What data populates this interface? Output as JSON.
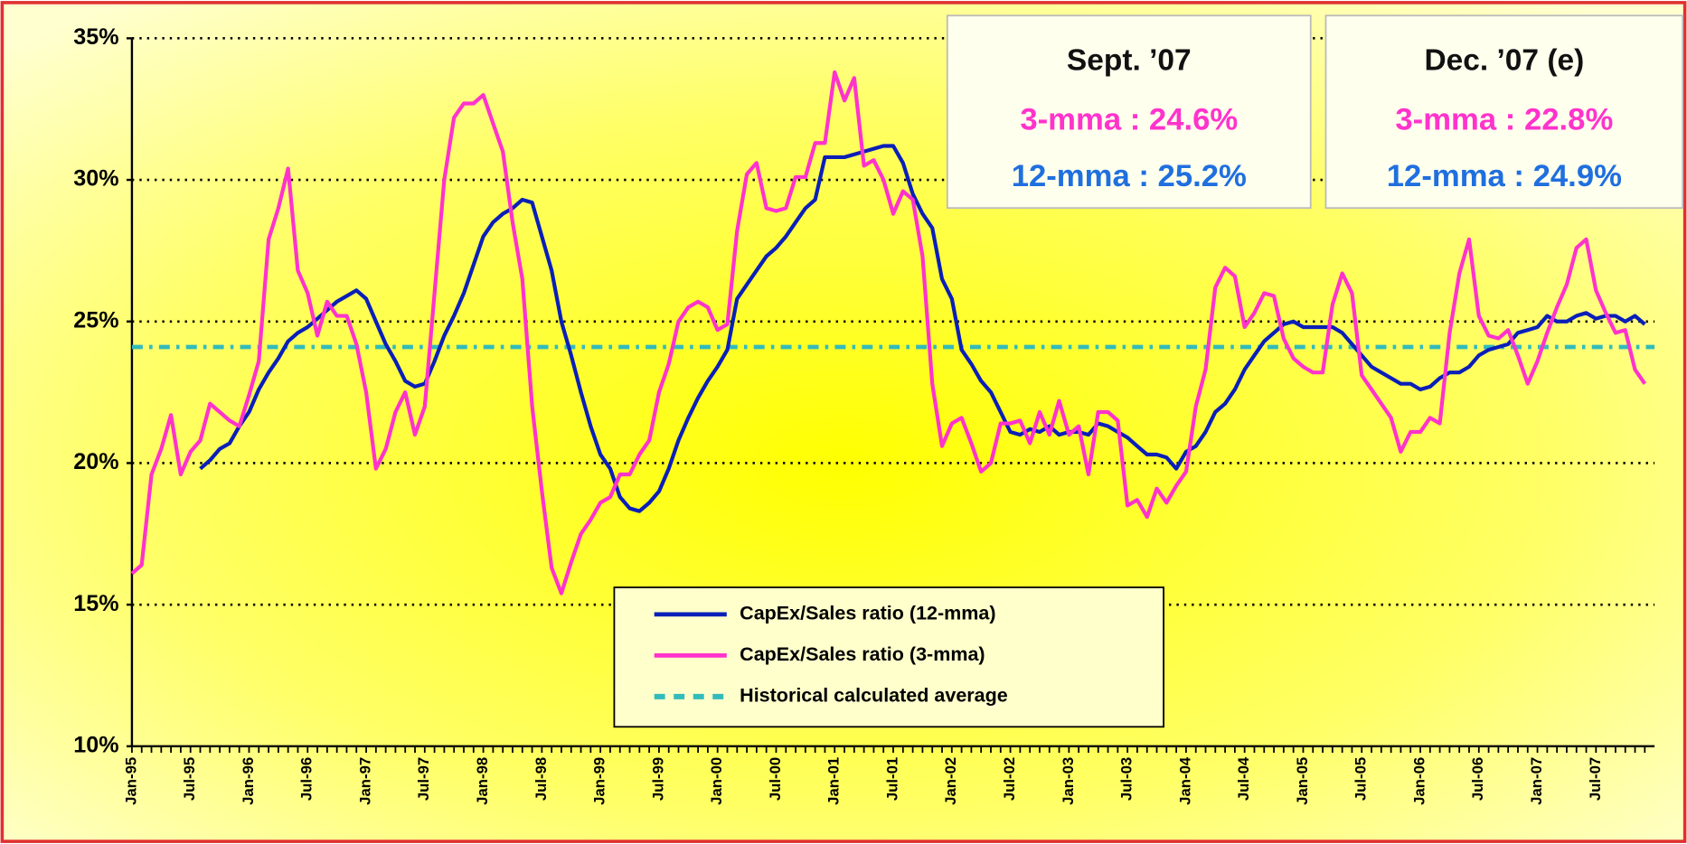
{
  "chart_data": {
    "type": "line",
    "categories": [
      "Jan-95",
      null,
      null,
      null,
      null,
      null,
      "Jul-95",
      null,
      null,
      null,
      null,
      null,
      "Jan-96",
      null,
      null,
      null,
      null,
      null,
      "Jul-96",
      null,
      null,
      null,
      null,
      null,
      "Jan-97",
      null,
      null,
      null,
      null,
      null,
      "Jul-97",
      null,
      null,
      null,
      null,
      null,
      "Jan-98",
      null,
      null,
      null,
      null,
      null,
      "Jul-98",
      null,
      null,
      null,
      null,
      null,
      "Jan-99",
      null,
      null,
      null,
      null,
      null,
      "Jul-99",
      null,
      null,
      null,
      null,
      null,
      "Jan-00",
      null,
      null,
      null,
      null,
      null,
      "Jul-00",
      null,
      null,
      null,
      null,
      null,
      "Jan-01",
      null,
      null,
      null,
      null,
      null,
      "Jul-01",
      null,
      null,
      null,
      null,
      null,
      "Jan-02",
      null,
      null,
      null,
      null,
      null,
      "Jul-02",
      null,
      null,
      null,
      null,
      null,
      "Jan-03",
      null,
      null,
      null,
      null,
      null,
      "Jul-03",
      null,
      null,
      null,
      null,
      null,
      "Jan-04",
      null,
      null,
      null,
      null,
      null,
      "Jul-04",
      null,
      null,
      null,
      null,
      null,
      "Jan-05",
      null,
      null,
      null,
      null,
      null,
      "Jul-05",
      null,
      null,
      null,
      null,
      null,
      "Jan-06",
      null,
      null,
      null,
      null,
      null,
      "Jul-06",
      null,
      null,
      null,
      null,
      null,
      "Jan-07",
      null,
      null,
      null,
      null,
      null,
      "Jul-07",
      null,
      null,
      null,
      null,
      null
    ],
    "series": [
      {
        "name": "CapEx/Sales ratio (12-mma)",
        "color": "#0a1fb8",
        "values": [
          null,
          null,
          null,
          null,
          null,
          null,
          null,
          19.8,
          20.1,
          20.5,
          20.7,
          21.3,
          21.8,
          22.6,
          23.2,
          23.7,
          24.3,
          24.6,
          24.8,
          25.1,
          25.4,
          25.7,
          25.9,
          26.1,
          25.8,
          25.0,
          24.2,
          23.6,
          22.9,
          22.7,
          22.8,
          23.6,
          24.5,
          25.2,
          26.0,
          27.0,
          28.0,
          28.5,
          28.8,
          29.0,
          29.3,
          29.2,
          28.0,
          26.8,
          25.0,
          23.8,
          22.5,
          21.3,
          20.3,
          19.8,
          18.8,
          18.4,
          18.3,
          18.6,
          19.0,
          19.8,
          20.8,
          21.6,
          22.3,
          22.9,
          23.4,
          24.0,
          25.8,
          26.3,
          26.8,
          27.3,
          27.6,
          28.0,
          28.5,
          29.0,
          29.3,
          30.8,
          30.8,
          30.8,
          30.9,
          31.0,
          31.1,
          31.2,
          31.2,
          30.6,
          29.5,
          28.8,
          28.3,
          26.5,
          25.8,
          24.0,
          23.5,
          22.9,
          22.5,
          21.8,
          21.1,
          21.0,
          21.2,
          21.1,
          21.3,
          21.0,
          21.1,
          21.1,
          21.0,
          21.4,
          21.3,
          21.1,
          20.9,
          20.6,
          20.3,
          20.3,
          20.2,
          19.8,
          20.4,
          20.6,
          21.1,
          21.8,
          22.1,
          22.6,
          23.3,
          23.8,
          24.3,
          24.6,
          24.9,
          25.0,
          24.8,
          24.8,
          24.8,
          24.8,
          24.6,
          24.2,
          23.8,
          23.4,
          23.2,
          23.0,
          22.8,
          22.8,
          22.6,
          22.7,
          23.0,
          23.2,
          23.2,
          23.4,
          23.8,
          24.0,
          24.1,
          24.2,
          24.6,
          24.7,
          24.8,
          25.2,
          25.0,
          25.0,
          25.2,
          25.3,
          25.1,
          25.2,
          25.2,
          25.0,
          25.2,
          24.9
        ]
      },
      {
        "name": "CapEx/Sales ratio (3-mma)",
        "color": "#ff33cc",
        "values": [
          16.1,
          16.4,
          19.6,
          20.5,
          21.7,
          19.6,
          20.4,
          20.8,
          22.1,
          21.8,
          21.5,
          21.3,
          22.4,
          23.6,
          27.9,
          29.0,
          30.4,
          26.8,
          26.0,
          24.5,
          25.7,
          25.2,
          25.2,
          24.2,
          22.5,
          19.8,
          20.5,
          21.8,
          22.5,
          21.0,
          22.0,
          26.0,
          30.0,
          32.2,
          32.7,
          32.7,
          33.0,
          32.0,
          31.0,
          28.5,
          26.5,
          22.0,
          19.0,
          16.3,
          15.4,
          16.5,
          17.5,
          18.0,
          18.6,
          18.8,
          19.6,
          19.6,
          20.3,
          20.8,
          22.5,
          23.5,
          25.0,
          25.5,
          25.7,
          25.5,
          24.7,
          24.9,
          28.2,
          30.2,
          30.6,
          29.0,
          28.9,
          29.0,
          30.1,
          30.1,
          31.3,
          31.3,
          33.8,
          32.8,
          33.6,
          30.5,
          30.7,
          30.0,
          28.8,
          29.6,
          29.3,
          27.3,
          22.8,
          20.6,
          21.4,
          21.6,
          20.7,
          19.7,
          20.0,
          21.4,
          21.4,
          21.5,
          20.7,
          21.8,
          21.0,
          22.2,
          21.0,
          21.3,
          19.6,
          21.8,
          21.8,
          21.5,
          18.5,
          18.7,
          18.1,
          19.1,
          18.6,
          19.2,
          19.7,
          22.0,
          23.3,
          26.2,
          26.9,
          26.6,
          24.8,
          25.3,
          26.0,
          25.9,
          24.4,
          23.7,
          23.4,
          23.2,
          23.2,
          25.6,
          26.7,
          26.0,
          23.1,
          22.6,
          22.1,
          21.6,
          20.4,
          21.1,
          21.1,
          21.6,
          21.4,
          24.6,
          26.7,
          27.9,
          25.2,
          24.5,
          24.4,
          24.7,
          23.8,
          22.8,
          23.6,
          24.6,
          25.5,
          26.3,
          27.6,
          27.9,
          26.1,
          25.3,
          24.6,
          24.7,
          23.3,
          22.8
        ]
      }
    ],
    "reference_line": {
      "name": "Historical calculated average",
      "value": 24.1,
      "color": "#33bbbb"
    },
    "ylim": [
      10,
      35
    ],
    "yticks": [
      {
        "value": 10,
        "label": "10%"
      },
      {
        "value": 15,
        "label": "15%"
      },
      {
        "value": 20,
        "label": "20%"
      },
      {
        "value": 25,
        "label": "25%"
      },
      {
        "value": 30,
        "label": "30%"
      },
      {
        "value": 35,
        "label": "35%"
      }
    ],
    "grid": true,
    "legend": "bottom-center",
    "annotations": [
      {
        "title": "Sept. ’07",
        "lines": [
          {
            "text": "3-mma : 24.6%",
            "color": "#ff33cc"
          },
          {
            "text": "12-mma : 25.2%",
            "color": "#1f6fdf"
          }
        ]
      },
      {
        "title": "Dec. ’07 (e)",
        "lines": [
          {
            "text": "3-mma : 22.8%",
            "color": "#ff33cc"
          },
          {
            "text": "12-mma : 24.9%",
            "color": "#1f6fdf"
          }
        ]
      }
    ]
  }
}
